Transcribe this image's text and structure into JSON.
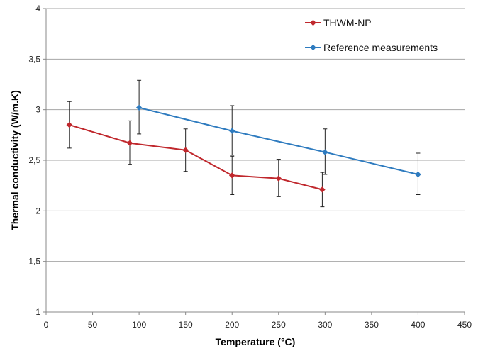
{
  "chart_data": {
    "type": "line",
    "title": "",
    "xlabel": "Temperature (°C)",
    "ylabel": "Thermal conductivity (W/m.K)",
    "xlim": [
      0,
      450
    ],
    "ylim": [
      1,
      4
    ],
    "x_ticks": [
      0,
      50,
      100,
      150,
      200,
      250,
      300,
      350,
      400,
      450
    ],
    "y_ticks": [
      1,
      1.5,
      2,
      2.5,
      3,
      3.5,
      4
    ],
    "x_tick_labels": [
      "0",
      "50",
      "100",
      "150",
      "200",
      "250",
      "300",
      "350",
      "400",
      "450"
    ],
    "y_tick_labels": [
      "1",
      "1,5",
      "2",
      "2,5",
      "3",
      "3,5",
      "4"
    ],
    "grid": "horizontal",
    "legend_position": "top-right",
    "series": [
      {
        "name": "THWM-NP",
        "color": "#c0282d",
        "x": [
          25,
          90,
          150,
          200,
          250,
          297
        ],
        "y": [
          2.85,
          2.67,
          2.6,
          2.35,
          2.32,
          2.21
        ],
        "error_low": [
          2.62,
          2.46,
          2.39,
          2.16,
          2.14,
          2.04
        ],
        "error_high": [
          3.08,
          2.89,
          2.81,
          2.54,
          2.51,
          2.38
        ]
      },
      {
        "name": "Reference measurements",
        "color": "#2e7bbf",
        "x": [
          100,
          200,
          300,
          400
        ],
        "y": [
          3.02,
          2.79,
          2.58,
          2.36
        ],
        "error_low": [
          2.76,
          2.55,
          2.36,
          2.16
        ],
        "error_high": [
          3.29,
          3.04,
          2.81,
          2.57
        ]
      }
    ]
  }
}
